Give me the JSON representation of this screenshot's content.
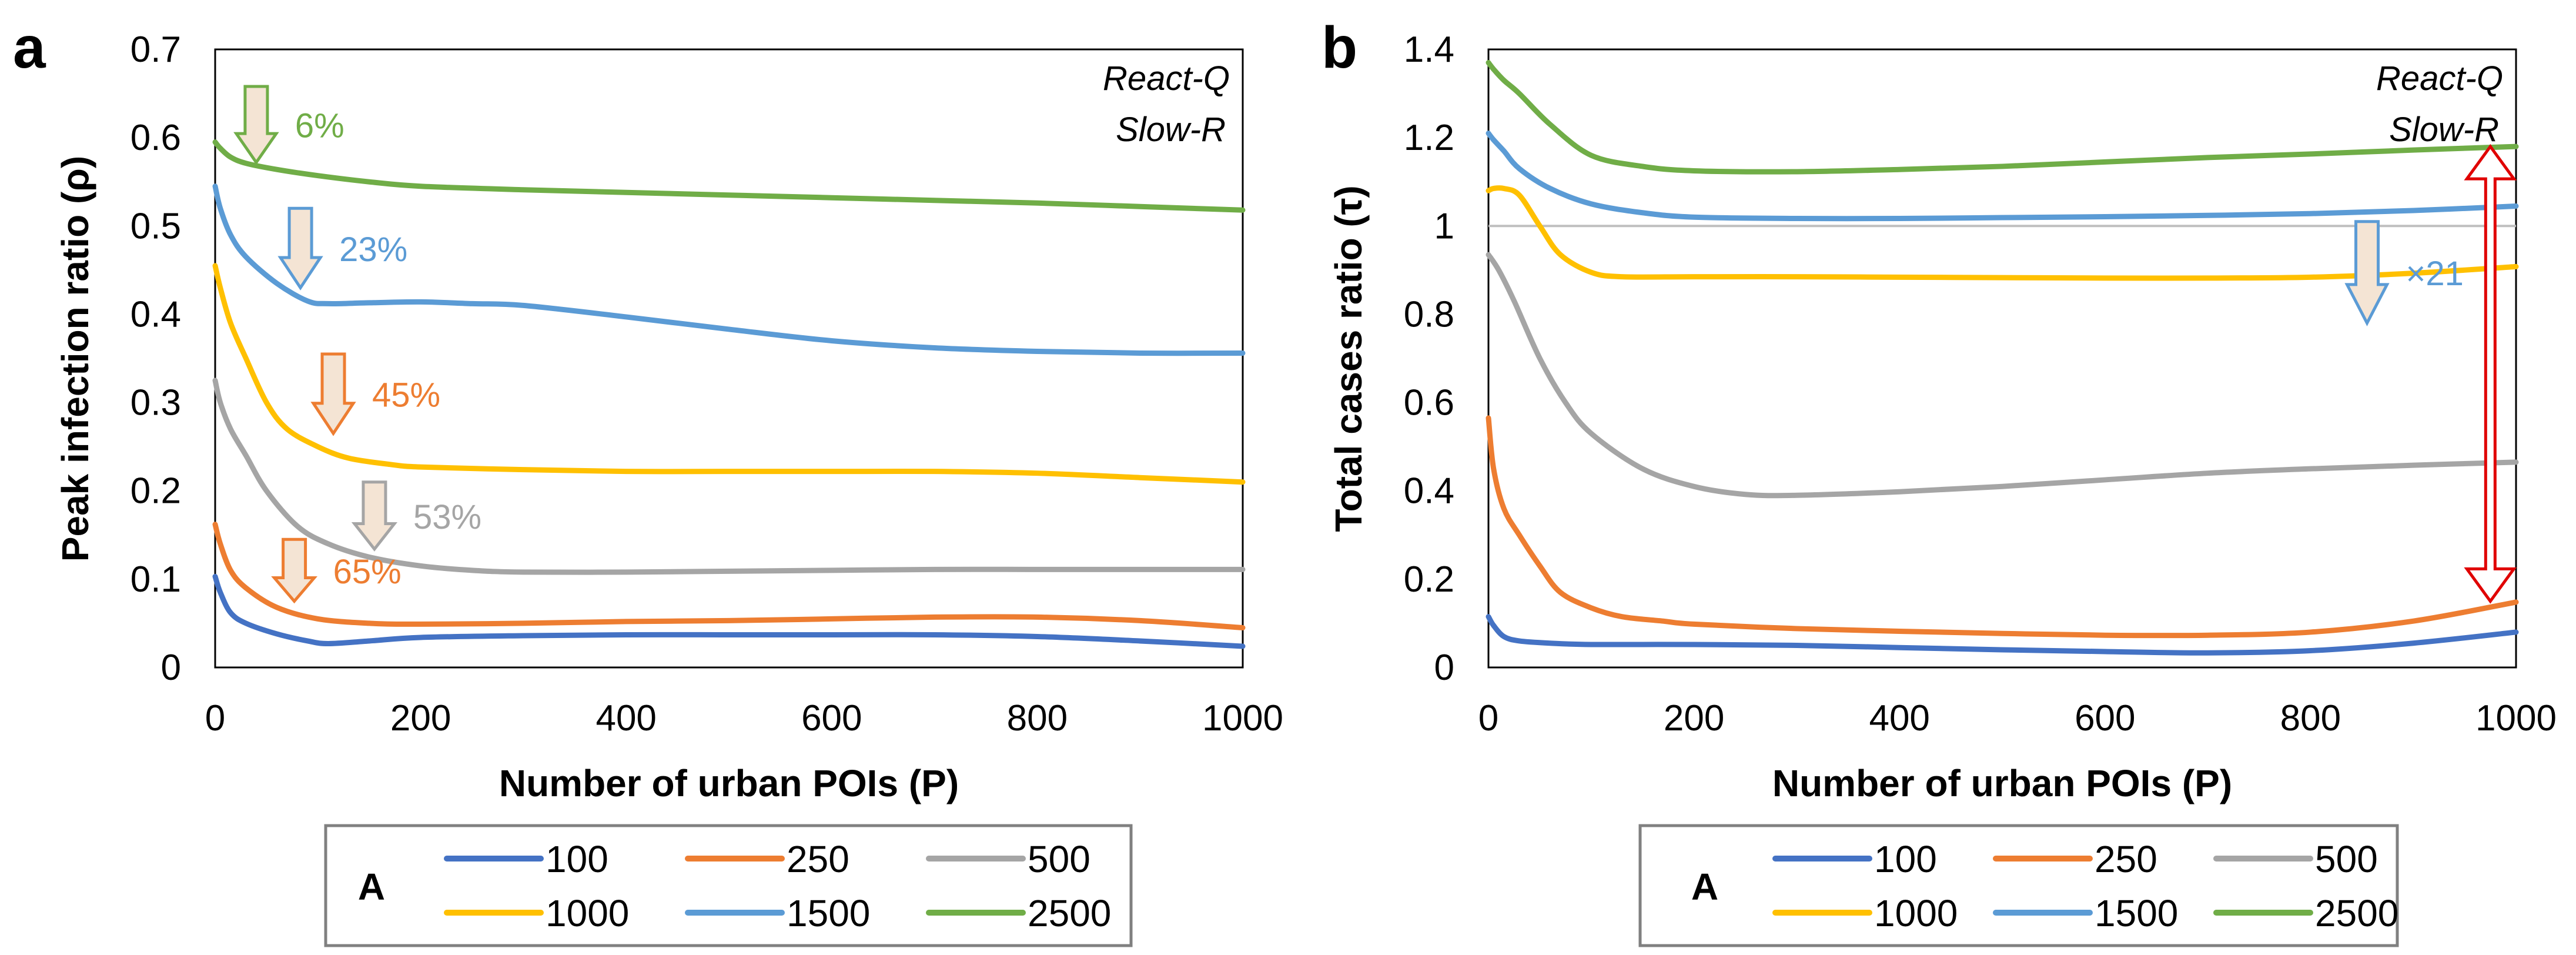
{
  "colors": {
    "A100": "#4472C4",
    "A250": "#ED7D31",
    "A500": "#A5A5A5",
    "A1000": "#FFC000",
    "A1500": "#5B9BD5",
    "A2500": "#70AD47",
    "arrow_fill": "#F4E4D4",
    "double_arrow": "#E00000",
    "reference_line": "#BFBFBF"
  },
  "chart_data": [
    {
      "type": "line",
      "panel": "a",
      "xlabel": "Number of urban POIs (P)",
      "ylabel": "Peak infection ratio (ρ)",
      "xlim": [
        0,
        1000
      ],
      "ylim": [
        0,
        0.7
      ],
      "x_ticks": [
        "0",
        "200",
        "400",
        "600",
        "800",
        "1000"
      ],
      "y_ticks": [
        "0",
        "0.1",
        "0.2",
        "0.3",
        "0.4",
        "0.5",
        "0.6",
        "0.7"
      ],
      "corner_labels": [
        "React-Q",
        "Slow-R"
      ],
      "legend_title": "A",
      "series": [
        {
          "name": "100",
          "color_key": "A100",
          "x": [
            0,
            5,
            15,
            30,
            60,
            90,
            110,
            150,
            200,
            300,
            400,
            500,
            600,
            700,
            800,
            900,
            1000
          ],
          "values": [
            0.103,
            0.085,
            0.062,
            0.05,
            0.038,
            0.03,
            0.027,
            0.03,
            0.034,
            0.036,
            0.037,
            0.037,
            0.037,
            0.037,
            0.035,
            0.03,
            0.024
          ]
        },
        {
          "name": "250",
          "color_key": "A250",
          "x": [
            0,
            5,
            15,
            30,
            60,
            100,
            150,
            200,
            300,
            400,
            500,
            600,
            700,
            800,
            900,
            1000
          ],
          "values": [
            0.162,
            0.14,
            0.11,
            0.09,
            0.068,
            0.055,
            0.05,
            0.049,
            0.05,
            0.052,
            0.053,
            0.055,
            0.057,
            0.057,
            0.053,
            0.045
          ]
        },
        {
          "name": "500",
          "color_key": "A500",
          "x": [
            0,
            5,
            15,
            30,
            50,
            80,
            110,
            150,
            200,
            250,
            300,
            400,
            500,
            600,
            700,
            800,
            900,
            1000
          ],
          "values": [
            0.325,
            0.3,
            0.27,
            0.24,
            0.2,
            0.16,
            0.14,
            0.125,
            0.115,
            0.11,
            0.108,
            0.108,
            0.109,
            0.11,
            0.111,
            0.111,
            0.111,
            0.111
          ]
        },
        {
          "name": "1000",
          "color_key": "A1000",
          "x": [
            0,
            5,
            15,
            30,
            50,
            70,
            100,
            130,
            170,
            200,
            300,
            400,
            500,
            600,
            700,
            800,
            900,
            1000
          ],
          "values": [
            0.455,
            0.43,
            0.39,
            0.35,
            0.3,
            0.27,
            0.25,
            0.237,
            0.23,
            0.227,
            0.224,
            0.222,
            0.222,
            0.222,
            0.222,
            0.22,
            0.215,
            0.21
          ]
        },
        {
          "name": "1500",
          "color_key": "A1500",
          "x": [
            0,
            5,
            15,
            30,
            60,
            90,
            110,
            150,
            200,
            250,
            300,
            400,
            500,
            600,
            700,
            800,
            900,
            1000
          ],
          "values": [
            0.545,
            0.52,
            0.49,
            0.465,
            0.435,
            0.415,
            0.412,
            0.413,
            0.414,
            0.412,
            0.41,
            0.397,
            0.383,
            0.37,
            0.362,
            0.358,
            0.356,
            0.356
          ]
        },
        {
          "name": "2500",
          "color_key": "A2500",
          "x": [
            0,
            5,
            15,
            30,
            60,
            100,
            150,
            200,
            300,
            400,
            500,
            600,
            700,
            800,
            900,
            1000
          ],
          "values": [
            0.595,
            0.588,
            0.578,
            0.571,
            0.564,
            0.557,
            0.55,
            0.545,
            0.541,
            0.538,
            0.535,
            0.532,
            0.529,
            0.526,
            0.522,
            0.518
          ]
        }
      ],
      "annotations": [
        {
          "text": "6%",
          "color_key": "A2500",
          "x": 40,
          "y_top": 0.658,
          "y_bottom": 0.572
        },
        {
          "text": "23%",
          "color_key": "A1500",
          "x": 83,
          "y_top": 0.52,
          "y_bottom": 0.43
        },
        {
          "text": "45%",
          "color_key": "A250",
          "x": 115,
          "y_top": 0.355,
          "y_bottom": 0.265
        },
        {
          "text": "53%",
          "color_key": "A500",
          "x": 155,
          "y_top": 0.21,
          "y_bottom": 0.134
        },
        {
          "text": "65%",
          "color_key": "A250",
          "x": 77,
          "y_top": 0.145,
          "y_bottom": 0.075
        }
      ]
    },
    {
      "type": "line",
      "panel": "b",
      "xlabel": "Number of urban POIs (P)",
      "ylabel": "Total cases ratio (τ)",
      "xlim": [
        0,
        1000
      ],
      "ylim": [
        0,
        1.4
      ],
      "x_ticks": [
        "0",
        "200",
        "400",
        "600",
        "800",
        "1000"
      ],
      "y_ticks": [
        "0",
        "0.2",
        "0.4",
        "0.6",
        "0.8",
        "1",
        "1.2",
        "1.4"
      ],
      "corner_labels": [
        "React-Q",
        "Slow-R"
      ],
      "legend_title": "A",
      "reference_line_y": 1,
      "series": [
        {
          "name": "100",
          "color_key": "A100",
          "x": [
            0,
            5,
            15,
            30,
            60,
            100,
            200,
            300,
            400,
            500,
            600,
            700,
            800,
            900,
            1000
          ],
          "values": [
            0.115,
            0.095,
            0.07,
            0.06,
            0.055,
            0.052,
            0.052,
            0.05,
            0.045,
            0.04,
            0.036,
            0.033,
            0.038,
            0.055,
            0.08
          ]
        },
        {
          "name": "250",
          "color_key": "A250",
          "x": [
            0,
            5,
            15,
            30,
            50,
            70,
            100,
            130,
            170,
            200,
            300,
            400,
            500,
            600,
            700,
            800,
            900,
            1000
          ],
          "values": [
            0.565,
            0.45,
            0.36,
            0.3,
            0.23,
            0.17,
            0.135,
            0.115,
            0.105,
            0.098,
            0.088,
            0.082,
            0.077,
            0.073,
            0.073,
            0.08,
            0.105,
            0.148
          ]
        },
        {
          "name": "500",
          "color_key": "A500",
          "x": [
            0,
            10,
            25,
            50,
            75,
            100,
            150,
            200,
            250,
            300,
            400,
            500,
            600,
            700,
            800,
            900,
            1000
          ],
          "values": [
            0.935,
            0.9,
            0.83,
            0.7,
            0.6,
            0.53,
            0.45,
            0.41,
            0.392,
            0.39,
            0.398,
            0.41,
            0.425,
            0.44,
            0.45,
            0.458,
            0.465
          ]
        },
        {
          "name": "1000",
          "color_key": "A1000",
          "x": [
            0,
            5,
            15,
            30,
            50,
            70,
            100,
            130,
            200,
            300,
            400,
            500,
            600,
            700,
            800,
            900,
            1000
          ],
          "values": [
            1.08,
            1.085,
            1.085,
            1.07,
            1.0,
            0.935,
            0.895,
            0.885,
            0.885,
            0.885,
            0.884,
            0.883,
            0.882,
            0.882,
            0.884,
            0.893,
            0.908
          ]
        },
        {
          "name": "1500",
          "color_key": "A1500",
          "x": [
            0,
            5,
            15,
            30,
            60,
            100,
            150,
            200,
            300,
            400,
            500,
            600,
            700,
            800,
            900,
            1000
          ],
          "values": [
            1.21,
            1.195,
            1.17,
            1.13,
            1.085,
            1.05,
            1.03,
            1.02,
            1.017,
            1.017,
            1.019,
            1.021,
            1.024,
            1.028,
            1.035,
            1.045
          ]
        },
        {
          "name": "2500",
          "color_key": "A2500",
          "x": [
            0,
            5,
            15,
            30,
            60,
            100,
            150,
            200,
            300,
            400,
            500,
            600,
            700,
            800,
            900,
            1000
          ],
          "values": [
            1.37,
            1.355,
            1.33,
            1.3,
            1.23,
            1.16,
            1.135,
            1.125,
            1.123,
            1.128,
            1.135,
            1.145,
            1.155,
            1.163,
            1.172,
            1.18
          ]
        }
      ],
      "annotations": [
        {
          "text": "×21",
          "color_key": "A1500",
          "x": 855,
          "y_top": 1.01,
          "y_bottom": 0.78
        },
        {
          "text": "",
          "color_key": "double_arrow",
          "x": 975,
          "y_top": 1.18,
          "y_bottom": 0.15,
          "double": true
        }
      ]
    }
  ]
}
